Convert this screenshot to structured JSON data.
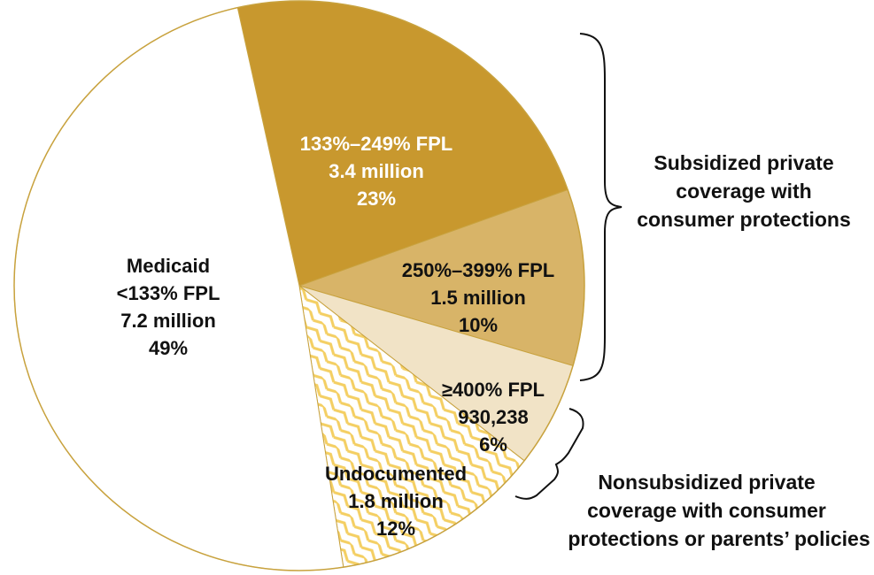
{
  "chart_data": {
    "type": "pie",
    "title": "",
    "slices": [
      {
        "key": "fpl_133_249",
        "label": "133%–249% FPL",
        "amount": "3.4 million",
        "percent": "23%",
        "value": 23,
        "color": "#C8982E",
        "text_color": "#ffffff"
      },
      {
        "key": "fpl_250_399",
        "label": "250%–399% FPL",
        "amount": "1.5 million",
        "percent": "10%",
        "value": 10,
        "color": "#D8B468",
        "text_color": "#111111"
      },
      {
        "key": "fpl_400_plus",
        "label": "≥400% FPL",
        "amount": "930,238",
        "percent": "6%",
        "value": 6,
        "color": "#F1E3C6",
        "text_color": "#111111"
      },
      {
        "key": "undocumented",
        "label": "Undocumented",
        "amount": "1.8 million",
        "percent": "12%",
        "value": 12,
        "color": "#F6D676",
        "pattern": "zigzag",
        "text_color": "#111111"
      },
      {
        "key": "medicaid",
        "label": "Medicaid",
        "label2": "<133% FPL",
        "amount": "7.2 million",
        "percent": "49%",
        "value": 49,
        "color": "#FFFFFF",
        "text_color": "#111111"
      }
    ],
    "groups": [
      {
        "key": "subsidized",
        "lines": [
          "Subsidized private",
          "coverage with",
          "consumer protections"
        ]
      },
      {
        "key": "nonsubsidized",
        "lines": [
          "Nonsubsidized private",
          "coverage with consumer",
          "protections or parents’ policies"
        ]
      }
    ],
    "outline_color": "#C8A23E"
  }
}
